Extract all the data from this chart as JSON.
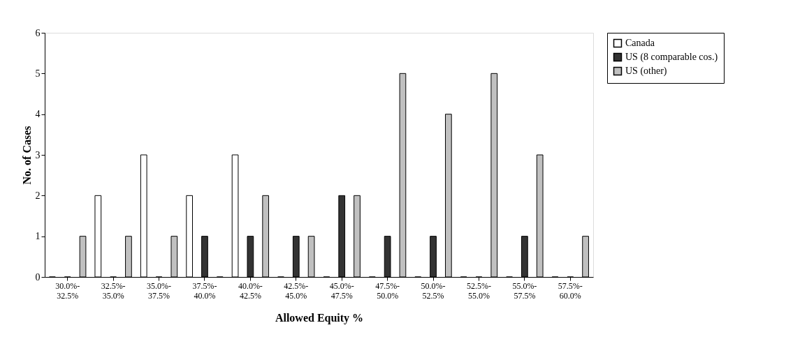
{
  "chart_data": {
    "type": "bar",
    "xlabel": "Allowed Equity %",
    "ylabel": "No. of Cases",
    "categories": [
      "30.0%-32.5%",
      "32.5%-35.0%",
      "35.0%-37.5%",
      "37.5%-40.0%",
      "40.0%-42.5%",
      "42.5%-45.0%",
      "45.0%-47.5%",
      "47.5%-50.0%",
      "50.0%-52.5%",
      "52.5%-55.0%",
      "55.0%-57.5%",
      "57.5%-60.0%"
    ],
    "series": [
      {
        "name": "Canada",
        "color": "#ffffff",
        "values": [
          0,
          2,
          3,
          2,
          3,
          0,
          0,
          0,
          0,
          0,
          0,
          0
        ]
      },
      {
        "name": "US (8 comparable cos.)",
        "color": "#333333",
        "values": [
          0,
          0,
          0,
          1,
          1,
          1,
          2,
          1,
          1,
          0,
          1,
          0
        ]
      },
      {
        "name": "US (other)",
        "color": "#c0c0c0",
        "values": [
          1,
          1,
          1,
          0,
          2,
          1,
          2,
          5,
          4,
          5,
          3,
          1
        ]
      }
    ],
    "ylim": [
      0,
      6
    ],
    "yticks": [
      0,
      1,
      2,
      3,
      4,
      5,
      6
    ],
    "grid": false,
    "legend": "right"
  }
}
